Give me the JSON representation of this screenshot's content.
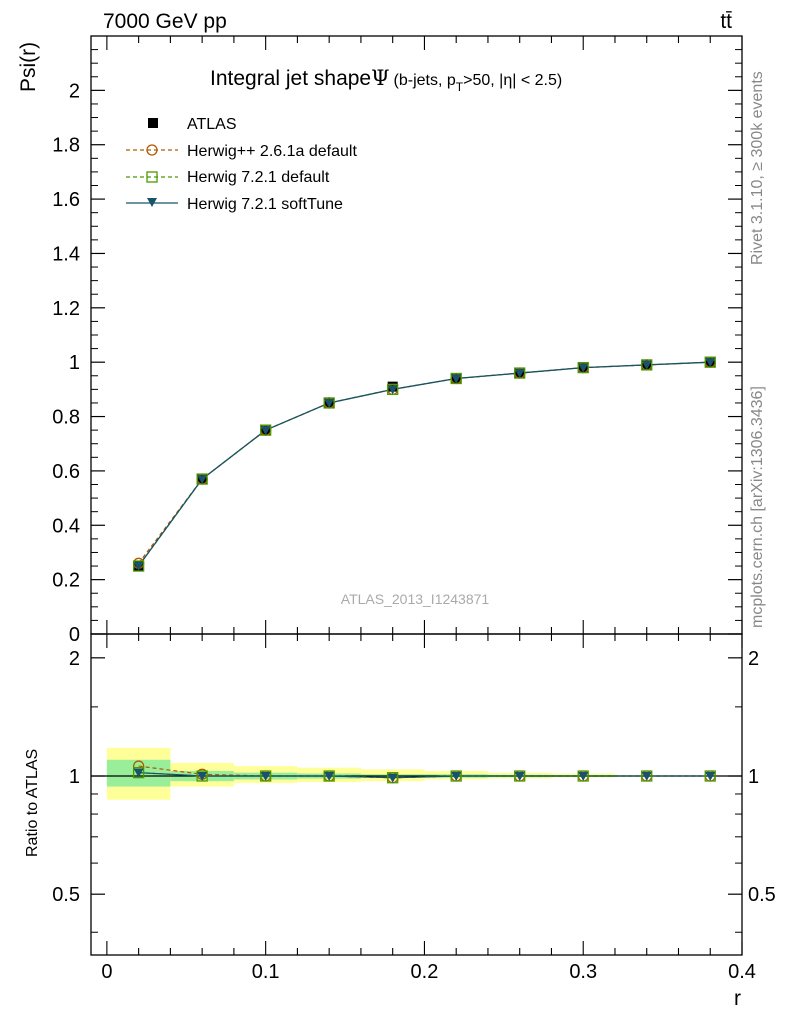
{
  "header": {
    "energy_label": "7000 GeV pp",
    "process_label": "tt̄"
  },
  "side_labels": {
    "rivet": "Rivet 3.1.10, ≥ 300k events",
    "mcplots": "mcplots.cern.ch [arXiv:1306.3436]"
  },
  "analysis_label": "ATLAS_2013_I1243871",
  "colors": {
    "atlas": "#000000",
    "herwigpp": "#b35900",
    "herwig721": "#4d9900",
    "softtune": "#17536b",
    "band_inner": "#99ee99",
    "band_outer": "#ffff99"
  },
  "chart_data": [
    {
      "type": "line",
      "title": "Integral jet shape",
      "title_symbol": "Ψ",
      "title_extra": "(b-jets, p",
      "title_sub": "T",
      "title_rest": ">50, |η| < 2.5)",
      "ylabel": "Psi(r)",
      "xlim": [
        -0.01,
        0.4
      ],
      "ylim": [
        0,
        2.2
      ],
      "yticks": [
        "0",
        "0.2",
        "0.4",
        "0.6",
        "0.8",
        "1",
        "1.2",
        "1.4",
        "1.6",
        "1.8",
        "2"
      ],
      "ytick_values": [
        0,
        0.2,
        0.4,
        0.6,
        0.8,
        1,
        1.2,
        1.4,
        1.6,
        1.8,
        2
      ],
      "legend_position": "top-left",
      "x": [
        0.02,
        0.06,
        0.1,
        0.14,
        0.18,
        0.22,
        0.26,
        0.3,
        0.34,
        0.38
      ],
      "series": [
        {
          "name": "ATLAS",
          "marker": "square-filled",
          "values": [
            0.25,
            0.57,
            0.75,
            0.85,
            0.91,
            0.94,
            0.96,
            0.98,
            0.99,
            1.0
          ]
        },
        {
          "name": "Herwig++ 2.6.1a default",
          "marker": "circle-open",
          "values": [
            0.26,
            0.57,
            0.75,
            0.85,
            0.9,
            0.94,
            0.96,
            0.98,
            0.99,
            1.0
          ]
        },
        {
          "name": "Herwig 7.2.1 default",
          "marker": "square-open",
          "values": [
            0.25,
            0.57,
            0.75,
            0.85,
            0.9,
            0.94,
            0.96,
            0.98,
            0.99,
            1.0
          ]
        },
        {
          "name": "Herwig 7.2.1 softTune",
          "marker": "triangle-down",
          "values": [
            0.25,
            0.57,
            0.75,
            0.85,
            0.9,
            0.94,
            0.96,
            0.98,
            0.99,
            1.0
          ]
        }
      ]
    },
    {
      "type": "line",
      "ylabel": "Ratio to ATLAS",
      "xlabel": "r",
      "xlim": [
        -0.01,
        0.4
      ],
      "ylim": [
        0.35,
        2.3
      ],
      "yscale": "log",
      "yticks": [
        "0.5",
        "1",
        "2"
      ],
      "ytick_values": [
        0.5,
        1,
        2
      ],
      "xticks": [
        "0",
        "0.1",
        "0.2",
        "0.3",
        "0.4"
      ],
      "xtick_values": [
        0,
        0.1,
        0.2,
        0.3,
        0.4
      ],
      "x": [
        0.02,
        0.06,
        0.1,
        0.14,
        0.18,
        0.22,
        0.26,
        0.3,
        0.34,
        0.38
      ],
      "bins": [
        [
          0.0,
          0.04
        ],
        [
          0.04,
          0.08
        ],
        [
          0.08,
          0.12
        ],
        [
          0.12,
          0.16
        ],
        [
          0.16,
          0.2
        ],
        [
          0.2,
          0.24
        ],
        [
          0.24,
          0.28
        ],
        [
          0.28,
          0.32
        ],
        [
          0.32,
          0.36
        ],
        [
          0.36,
          0.4
        ]
      ],
      "band_inner": [
        [
          0.94,
          1.1
        ],
        [
          0.97,
          1.03
        ],
        [
          0.98,
          1.02
        ],
        [
          0.985,
          1.015
        ],
        [
          0.99,
          1.01
        ],
        [
          0.99,
          1.01
        ],
        [
          0.993,
          1.007
        ],
        [
          0.995,
          1.005
        ],
        [
          0.997,
          1.003
        ],
        [
          0.998,
          1.002
        ]
      ],
      "band_outer": [
        [
          0.87,
          1.18
        ],
        [
          0.94,
          1.08
        ],
        [
          0.96,
          1.06
        ],
        [
          0.965,
          1.05
        ],
        [
          0.97,
          1.04
        ],
        [
          0.98,
          1.03
        ],
        [
          0.985,
          1.02
        ],
        [
          0.99,
          1.015
        ],
        [
          0.995,
          1.005
        ],
        [
          0.997,
          1.003
        ]
      ],
      "series": [
        {
          "name": "Herwig++ 2.6.1a default",
          "marker": "circle-open",
          "values": [
            1.06,
            1.01,
            1.0,
            1.0,
            0.99,
            1.0,
            1.0,
            1.0,
            1.0,
            1.0
          ]
        },
        {
          "name": "Herwig 7.2.1 default",
          "marker": "square-open",
          "values": [
            1.02,
            1.0,
            1.0,
            1.0,
            0.99,
            1.0,
            1.0,
            1.0,
            1.0,
            1.0
          ]
        },
        {
          "name": "Herwig 7.2.1 softTune",
          "marker": "triangle-down",
          "values": [
            1.02,
            1.0,
            1.0,
            1.0,
            0.99,
            1.0,
            1.0,
            1.0,
            1.0,
            1.0
          ]
        }
      ]
    }
  ]
}
